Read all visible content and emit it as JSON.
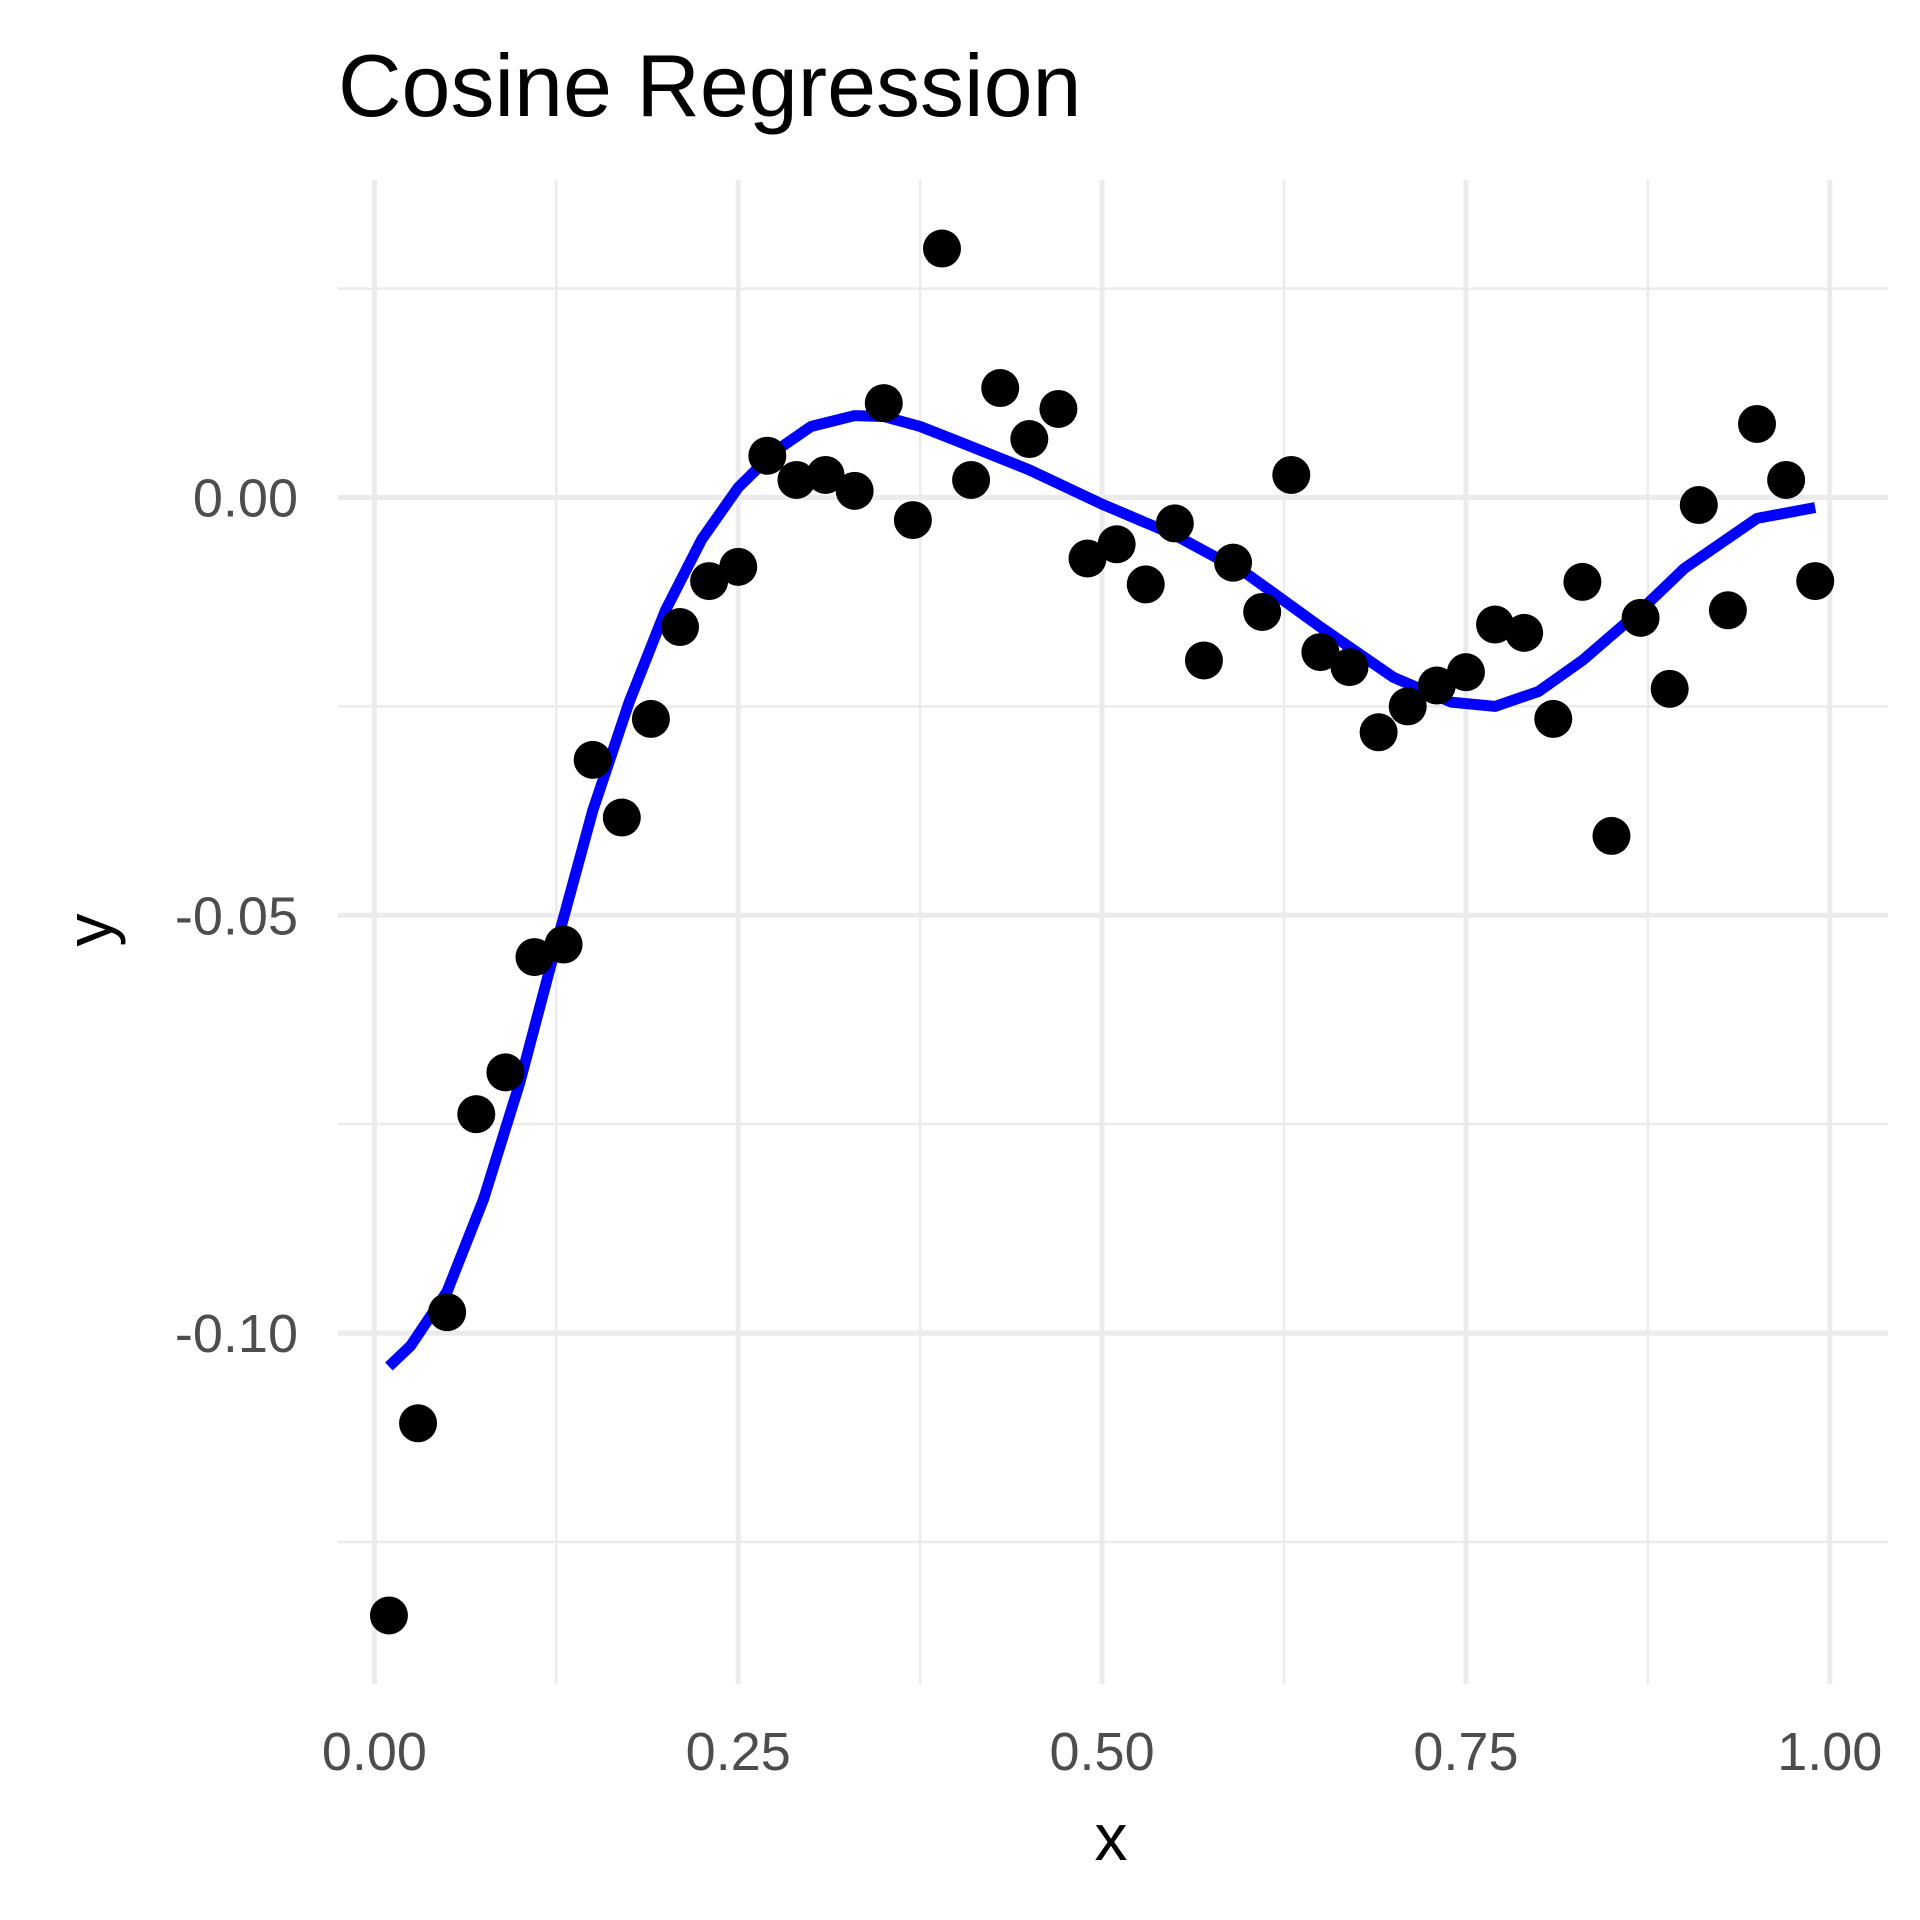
{
  "chart_data": {
    "type": "scatter",
    "title": "Cosine Regression",
    "xlabel": "x",
    "ylabel": "y",
    "xlim": [
      -0.025,
      1.04
    ],
    "ylim": [
      -0.142,
      0.038
    ],
    "grid": true,
    "legend": "none",
    "x_ticks": [
      {
        "value": 0.0,
        "label": "0.00"
      },
      {
        "value": 0.25,
        "label": "0.25"
      },
      {
        "value": 0.5,
        "label": "0.50"
      },
      {
        "value": 0.75,
        "label": "0.75"
      },
      {
        "value": 1.0,
        "label": "1.00"
      }
    ],
    "y_ticks": [
      {
        "value": 0.0,
        "label": "0.00"
      },
      {
        "value": -0.05,
        "label": "-0.05"
      },
      {
        "value": -0.1,
        "label": "-0.10"
      }
    ],
    "x_minor": [
      0.125,
      0.375,
      0.625,
      0.875
    ],
    "y_minor": [
      0.025,
      -0.025,
      -0.075,
      -0.125
    ],
    "colors": {
      "points": "#000000",
      "fit_line": "#0000ff",
      "grid": "#ebebeb"
    },
    "series": [
      {
        "type": "points",
        "x": [
          0.01,
          0.03,
          0.05,
          0.07,
          0.09,
          0.11,
          0.13,
          0.15,
          0.17,
          0.19,
          0.21,
          0.23,
          0.25,
          0.27,
          0.29,
          0.31,
          0.33,
          0.35,
          0.37,
          0.39,
          0.41,
          0.43,
          0.45,
          0.47,
          0.49,
          0.51,
          0.53,
          0.55,
          0.57,
          0.59,
          0.61,
          0.63,
          0.65,
          0.67,
          0.69,
          0.71,
          0.73,
          0.75,
          0.77,
          0.79,
          0.81,
          0.83,
          0.85,
          0.87,
          0.89,
          0.91,
          0.93,
          0.95,
          0.97,
          0.99
        ],
        "y": [
          -0.1338,
          -0.1108,
          -0.0975,
          -0.0738,
          -0.0688,
          -0.055,
          -0.0535,
          -0.0314,
          -0.0383,
          -0.0265,
          -0.0155,
          -0.01,
          -0.0083,
          0.005,
          0.0021,
          0.0027,
          0.0008,
          0.0113,
          -0.0027,
          0.0298,
          0.0021,
          0.0131,
          0.007,
          0.0106,
          -0.0073,
          -0.0056,
          -0.0104,
          -0.0031,
          -0.0195,
          -0.0078,
          -0.0137,
          0.0027,
          -0.0185,
          -0.0203,
          -0.0281,
          -0.025,
          -0.0225,
          -0.0209,
          -0.0152,
          -0.0162,
          -0.0265,
          -0.0101,
          -0.0405,
          -0.0144,
          -0.0229,
          -0.0009,
          -0.0135,
          0.0088,
          0.0021,
          -0.01
        ]
      },
      {
        "type": "line",
        "x": [
          0.01,
          0.025,
          0.05,
          0.075,
          0.1,
          0.125,
          0.15,
          0.175,
          0.2,
          0.225,
          0.25,
          0.275,
          0.3,
          0.33,
          0.35,
          0.375,
          0.4,
          0.45,
          0.5,
          0.55,
          0.6,
          0.65,
          0.7,
          0.74,
          0.77,
          0.8,
          0.83,
          0.87,
          0.9,
          0.95,
          0.99
        ],
        "y": [
          -0.104,
          -0.1015,
          -0.095,
          -0.084,
          -0.07,
          -0.0535,
          -0.0375,
          -0.0245,
          -0.0135,
          -0.005,
          0.0012,
          0.0055,
          0.0085,
          0.0098,
          0.0097,
          0.0085,
          0.0068,
          0.0033,
          -0.0008,
          -0.0045,
          -0.0092,
          -0.0155,
          -0.0215,
          -0.0245,
          -0.025,
          -0.0232,
          -0.0195,
          -0.0135,
          -0.0085,
          -0.0025,
          -0.0012
        ]
      }
    ]
  }
}
